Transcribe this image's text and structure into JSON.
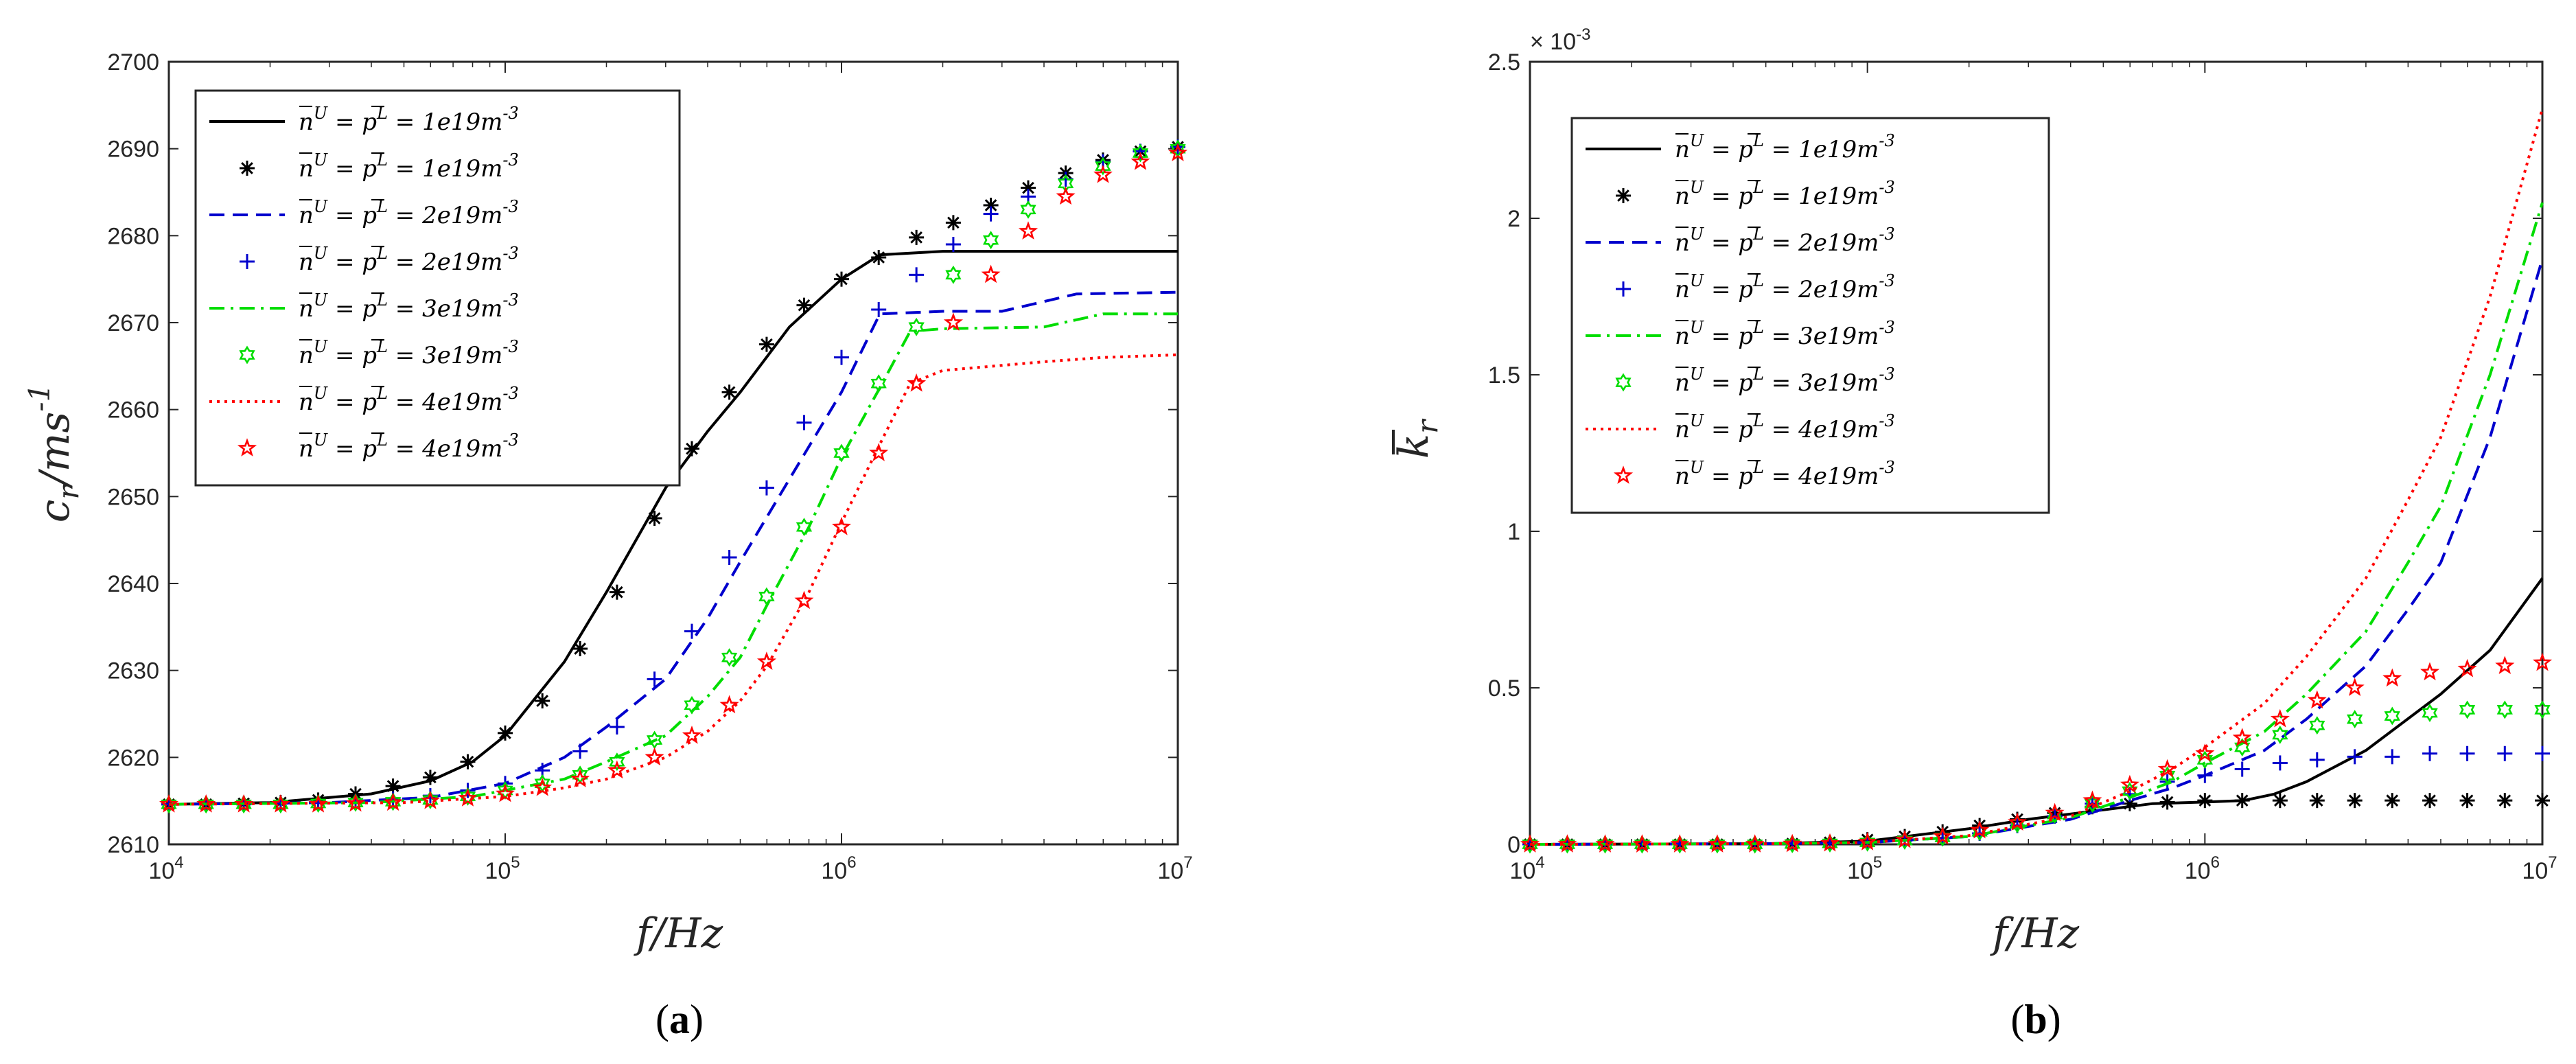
{
  "chart_data": [
    {
      "type": "line",
      "panel_label_parts": [
        "(",
        "a",
        ")"
      ],
      "xlabel": "f/Hz",
      "ylabel": "c_r/ms^-1",
      "ylabel_parts": [
        "c",
        "r",
        "/ms",
        "-1"
      ],
      "x_scale": "log",
      "xlim": [
        10000,
        10000000
      ],
      "ylim": [
        2610,
        2700
      ],
      "x_ticks": [
        {
          "base": "10",
          "exp": "4",
          "value": 10000
        },
        {
          "base": "10",
          "exp": "5",
          "value": 100000
        },
        {
          "base": "10",
          "exp": "6",
          "value": 1000000
        },
        {
          "base": "10",
          "exp": "7",
          "value": 10000000
        }
      ],
      "y_ticks": [
        "2610",
        "2620",
        "2630",
        "2640",
        "2650",
        "2660",
        "2670",
        "2680",
        "2690",
        "2700"
      ],
      "y_multiplier": "",
      "legend_position": "top-left",
      "series": [
        {
          "name": "n̄U = p̄L = 1e19m-3",
          "kind": "line",
          "color": "#000000",
          "dash": "solid",
          "x": [
            10000,
            20000,
            40000,
            60000,
            80000,
            100000,
            150000,
            200000,
            300000,
            400000,
            500000,
            700000,
            1000000,
            1300000,
            2000000,
            10000000
          ],
          "y": [
            2614.6,
            2614.8,
            2615.8,
            2617.3,
            2619.5,
            2622.5,
            2631,
            2639,
            2651,
            2657.5,
            2662,
            2669.5,
            2675,
            2677.8,
            2678.2,
            2678.2
          ]
        },
        {
          "name": "n̄U = p̄L = 1e19m-3",
          "kind": "marker",
          "marker": "asterisk",
          "color": "#000000",
          "x": [
            10000,
            12900,
            16700,
            21500,
            27800,
            35900,
            46400,
            59900,
            77400,
            100000,
            129000,
            167000,
            215000,
            278000,
            359000,
            464000,
            599000,
            774000,
            1000000,
            1290000,
            1670000,
            2150000,
            2780000,
            3590000,
            4640000,
            5990000,
            7740000,
            10000000
          ],
          "y": [
            2614.6,
            2614.6,
            2614.7,
            2614.8,
            2615.1,
            2615.8,
            2616.7,
            2617.7,
            2619.5,
            2622.8,
            2626.5,
            2632.5,
            2639,
            2647.5,
            2655.5,
            2662,
            2667.5,
            2672,
            2675,
            2677.5,
            2679.8,
            2681.5,
            2683.5,
            2685.5,
            2687.2,
            2688.7,
            2689.7,
            2690.2
          ]
        },
        {
          "name": "n̄U = p̄L = 2e19m-3",
          "kind": "line",
          "color": "#0000cd",
          "dash": "dash",
          "x": [
            10000,
            30000,
            60000,
            100000,
            150000,
            200000,
            300000,
            400000,
            500000,
            700000,
            1000000,
            1300000,
            2000000,
            3000000,
            5000000,
            10000000
          ],
          "y": [
            2614.6,
            2614.8,
            2615.4,
            2617,
            2620,
            2623.5,
            2629,
            2636,
            2642.5,
            2652,
            2662,
            2671,
            2671.3,
            2671.3,
            2673.3,
            2673.5
          ]
        },
        {
          "name": "n̄U = p̄L = 2e19m-3",
          "kind": "marker",
          "marker": "plus",
          "color": "#0000cd",
          "x": [
            10000,
            12900,
            16700,
            21500,
            27800,
            35900,
            46400,
            59900,
            77400,
            100000,
            129000,
            167000,
            215000,
            278000,
            359000,
            464000,
            599000,
            774000,
            1000000,
            1290000,
            1670000,
            2150000,
            2780000,
            3590000,
            4640000,
            5990000,
            7740000,
            10000000
          ],
          "y": [
            2614.6,
            2614.6,
            2614.6,
            2614.7,
            2614.8,
            2614.9,
            2615.2,
            2615.6,
            2616.2,
            2617,
            2618.5,
            2620.7,
            2623.5,
            2629,
            2634.5,
            2643,
            2651,
            2658.5,
            2666,
            2671.5,
            2675.5,
            2679,
            2682.5,
            2684.5,
            2686.5,
            2688.5,
            2689.7,
            2690.2
          ]
        },
        {
          "name": "n̄U = p̄L = 3e19m-3",
          "kind": "line",
          "color": "#00dd00",
          "dash": "dashdot",
          "x": [
            10000,
            40000,
            80000,
            150000,
            200000,
            300000,
            400000,
            500000,
            600000,
            800000,
            1000000,
            1300000,
            1600000,
            2000000,
            4000000,
            6000000,
            10000000
          ],
          "y": [
            2614.6,
            2614.8,
            2615.5,
            2617.5,
            2619.5,
            2622.5,
            2627,
            2631.5,
            2637.5,
            2646.5,
            2654.5,
            2662.5,
            2669,
            2669.3,
            2669.5,
            2671,
            2671
          ]
        },
        {
          "name": "n̄U = p̄L = 3e19m-3",
          "kind": "marker",
          "marker": "hexagram",
          "color": "#00dd00",
          "x": [
            10000,
            12900,
            16700,
            21500,
            27800,
            35900,
            46400,
            59900,
            77400,
            100000,
            129000,
            167000,
            215000,
            278000,
            359000,
            464000,
            599000,
            774000,
            1000000,
            1290000,
            1670000,
            2150000,
            2780000,
            3590000,
            4640000,
            5990000,
            7740000,
            10000000
          ],
          "y": [
            2614.6,
            2614.6,
            2614.6,
            2614.6,
            2614.7,
            2614.8,
            2614.9,
            2615.1,
            2615.5,
            2616.2,
            2617,
            2618,
            2619.5,
            2622,
            2626,
            2631.5,
            2638.5,
            2646.5,
            2655,
            2663,
            2669.5,
            2675.5,
            2679.5,
            2683,
            2686,
            2688,
            2689.5,
            2690
          ]
        },
        {
          "name": "n̄U = p̄L = 4e19m-3",
          "kind": "line",
          "color": "#ff0000",
          "dash": "dot",
          "x": [
            10000,
            50000,
            100000,
            150000,
            200000,
            300000,
            400000,
            500000,
            600000,
            800000,
            1000000,
            1300000,
            1600000,
            2000000,
            4000000,
            6000000,
            10000000
          ],
          "y": [
            2614.6,
            2614.8,
            2615.5,
            2616.5,
            2617.5,
            2620,
            2623,
            2626.5,
            2630.5,
            2639,
            2647,
            2656,
            2663,
            2664.5,
            2665.5,
            2666,
            2666.3
          ]
        },
        {
          "name": "n̄U = p̄L = 4e19m-3",
          "kind": "marker",
          "marker": "pentagram",
          "color": "#ff0000",
          "x": [
            10000,
            12900,
            16700,
            21500,
            27800,
            35900,
            46400,
            59900,
            77400,
            100000,
            129000,
            167000,
            215000,
            278000,
            359000,
            464000,
            599000,
            774000,
            1000000,
            1290000,
            1670000,
            2150000,
            2780000,
            3590000,
            4640000,
            5990000,
            7740000,
            10000000
          ],
          "y": [
            2614.6,
            2614.6,
            2614.6,
            2614.6,
            2614.6,
            2614.7,
            2614.8,
            2615,
            2615.3,
            2615.8,
            2616.5,
            2617.5,
            2618.5,
            2620,
            2622.5,
            2626,
            2631,
            2638,
            2646.5,
            2655,
            2663,
            2670,
            2675.5,
            2680.5,
            2684.5,
            2687,
            2688.5,
            2689.5
          ]
        }
      ]
    },
    {
      "type": "line",
      "panel_label_parts": [
        "(",
        "b",
        ")"
      ],
      "xlabel": "f/Hz",
      "ylabel": "k̄_r",
      "ylabel_parts": [
        "k",
        "r"
      ],
      "x_scale": "log",
      "xlim": [
        10000,
        10000000
      ],
      "ylim": [
        0,
        2.5
      ],
      "x_ticks": [
        {
          "base": "10",
          "exp": "4",
          "value": 10000
        },
        {
          "base": "10",
          "exp": "5",
          "value": 100000
        },
        {
          "base": "10",
          "exp": "6",
          "value": 1000000
        },
        {
          "base": "10",
          "exp": "7",
          "value": 10000000
        }
      ],
      "y_ticks": [
        "0",
        "0.5",
        "1",
        "1.5",
        "2",
        "2.5"
      ],
      "y_multiplier_parts": [
        "× 10",
        "-3"
      ],
      "legend_position": "top-left",
      "series": [
        {
          "name": "n̄U = p̄L = 1e19m-3",
          "kind": "line",
          "color": "#000000",
          "dash": "solid",
          "x": [
            10000,
            50000,
            100000,
            200000,
            300000,
            500000,
            700000,
            1000000,
            1300000,
            1600000,
            2000000,
            3000000,
            5000000,
            7000000,
            10000000
          ],
          "y": [
            0,
            0.002,
            0.01,
            0.05,
            0.08,
            0.11,
            0.13,
            0.135,
            0.14,
            0.16,
            0.2,
            0.3,
            0.48,
            0.62,
            0.85
          ]
        },
        {
          "name": "n̄U = p̄L = 1e19m-3",
          "kind": "marker",
          "marker": "asterisk",
          "color": "#000000",
          "x": [
            10000,
            12900,
            16700,
            21500,
            27800,
            35900,
            46400,
            59900,
            77400,
            100000,
            129000,
            167000,
            215000,
            278000,
            359000,
            464000,
            599000,
            774000,
            1000000,
            1290000,
            1670000,
            2150000,
            2780000,
            3590000,
            4640000,
            5990000,
            7740000,
            10000000
          ],
          "y": [
            0,
            0,
            0,
            0,
            0,
            0,
            0,
            0.002,
            0.006,
            0.015,
            0.025,
            0.04,
            0.06,
            0.08,
            0.1,
            0.12,
            0.13,
            0.135,
            0.14,
            0.14,
            0.14,
            0.14,
            0.14,
            0.14,
            0.14,
            0.14,
            0.14,
            0.14
          ]
        },
        {
          "name": "n̄U = p̄L = 2e19m-3",
          "kind": "line",
          "color": "#0000cd",
          "dash": "dash",
          "x": [
            10000,
            50000,
            100000,
            200000,
            400000,
            600000,
            800000,
            1000000,
            1500000,
            2000000,
            3000000,
            4000000,
            5000000,
            7000000,
            10000000
          ],
          "y": [
            0,
            0.002,
            0.006,
            0.025,
            0.08,
            0.14,
            0.18,
            0.22,
            0.3,
            0.4,
            0.57,
            0.75,
            0.9,
            1.3,
            1.87
          ]
        },
        {
          "name": "n̄U = p̄L = 2e19m-3",
          "kind": "marker",
          "marker": "plus",
          "color": "#0000cd",
          "x": [
            10000,
            12900,
            16700,
            21500,
            27800,
            35900,
            46400,
            59900,
            77400,
            100000,
            129000,
            167000,
            215000,
            278000,
            359000,
            464000,
            599000,
            774000,
            1000000,
            1290000,
            1670000,
            2150000,
            2780000,
            3590000,
            4640000,
            5990000,
            7740000,
            10000000
          ],
          "y": [
            0,
            0,
            0,
            0,
            0,
            0,
            0,
            0.001,
            0.003,
            0.006,
            0.012,
            0.02,
            0.035,
            0.06,
            0.09,
            0.13,
            0.16,
            0.2,
            0.22,
            0.24,
            0.26,
            0.27,
            0.28,
            0.28,
            0.29,
            0.29,
            0.29,
            0.29
          ]
        },
        {
          "name": "n̄U = p̄L = 3e19m-3",
          "kind": "line",
          "color": "#00dd00",
          "dash": "dashdot",
          "x": [
            10000,
            50000,
            100000,
            200000,
            400000,
            600000,
            800000,
            1000000,
            1500000,
            2000000,
            3000000,
            4000000,
            5000000,
            7000000,
            10000000
          ],
          "y": [
            0,
            0.002,
            0.006,
            0.025,
            0.085,
            0.15,
            0.2,
            0.26,
            0.36,
            0.48,
            0.68,
            0.9,
            1.08,
            1.5,
            2.05
          ]
        },
        {
          "name": "n̄U = p̄L = 3e19m-3",
          "kind": "marker",
          "marker": "hexagram",
          "color": "#00dd00",
          "x": [
            10000,
            12900,
            16700,
            21500,
            27800,
            35900,
            46400,
            59900,
            77400,
            100000,
            129000,
            167000,
            215000,
            278000,
            359000,
            464000,
            599000,
            774000,
            1000000,
            1290000,
            1670000,
            2150000,
            2780000,
            3590000,
            4640000,
            5990000,
            7740000,
            10000000
          ],
          "y": [
            0,
            0,
            0,
            0,
            0,
            0,
            0,
            0.001,
            0.003,
            0.006,
            0.012,
            0.022,
            0.04,
            0.065,
            0.095,
            0.13,
            0.17,
            0.22,
            0.27,
            0.31,
            0.35,
            0.38,
            0.4,
            0.41,
            0.42,
            0.43,
            0.43,
            0.43
          ]
        },
        {
          "name": "n̄U = p̄L = 4e19m-3",
          "kind": "line",
          "color": "#ff0000",
          "dash": "dot",
          "x": [
            10000,
            50000,
            100000,
            200000,
            400000,
            600000,
            800000,
            1000000,
            1500000,
            2000000,
            3000000,
            4000000,
            5000000,
            7000000,
            10000000
          ],
          "y": [
            0,
            0.002,
            0.006,
            0.028,
            0.09,
            0.17,
            0.24,
            0.31,
            0.45,
            0.6,
            0.85,
            1.1,
            1.3,
            1.75,
            2.35
          ]
        },
        {
          "name": "n̄U = p̄L = 4e19m-3",
          "kind": "marker",
          "marker": "pentagram",
          "color": "#ff0000",
          "x": [
            10000,
            12900,
            16700,
            21500,
            27800,
            35900,
            46400,
            59900,
            77400,
            100000,
            129000,
            167000,
            215000,
            278000,
            359000,
            464000,
            599000,
            774000,
            1000000,
            1290000,
            1670000,
            2150000,
            2780000,
            3590000,
            4640000,
            5990000,
            7740000,
            10000000
          ],
          "y": [
            0,
            0,
            0,
            0,
            0,
            0,
            0,
            0.001,
            0.003,
            0.007,
            0.014,
            0.025,
            0.045,
            0.07,
            0.1,
            0.14,
            0.19,
            0.24,
            0.29,
            0.34,
            0.4,
            0.46,
            0.5,
            0.53,
            0.55,
            0.56,
            0.57,
            0.58
          ]
        }
      ]
    }
  ],
  "legend_parts": {
    "n": "n",
    "U": "U",
    "eq": " = ",
    "p": "p",
    "L": "L",
    "eq2": " = ",
    "unit": "m",
    "unit_exp": "-3",
    "values": [
      "1e19",
      "1e19",
      "2e19",
      "2e19",
      "3e19",
      "3e19",
      "4e19",
      "4e19"
    ]
  }
}
